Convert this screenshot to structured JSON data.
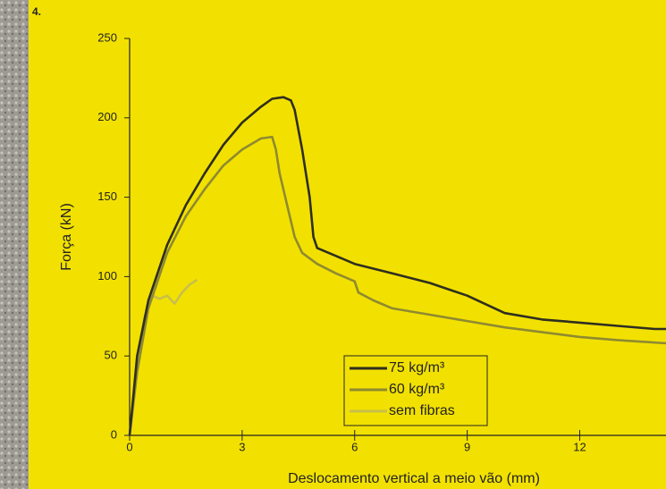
{
  "figure_label": "4.",
  "chart_data": {
    "type": "line",
    "x_label": "Deslocamento vertical a meio vão (mm)",
    "y_label": "Força (kN)",
    "xlim": [
      0,
      14.3
    ],
    "ylim": [
      0,
      250
    ],
    "xticks": [
      0,
      3,
      6,
      9,
      12
    ],
    "yticks": [
      0,
      50,
      100,
      150,
      200,
      250
    ],
    "legend": "bottom-center",
    "series": [
      {
        "name": "75 kg/m³",
        "color": "#2e2e20",
        "x": [
          0,
          0.2,
          0.5,
          1,
          1.5,
          2,
          2.5,
          3,
          3.5,
          3.8,
          4.1,
          4.3,
          4.4,
          4.6,
          4.8,
          4.9,
          5,
          5.5,
          6,
          7,
          8,
          9,
          10,
          11,
          12,
          13,
          14,
          14.3
        ],
        "values": [
          0,
          50,
          85,
          120,
          145,
          165,
          183,
          197,
          207,
          212,
          213,
          211,
          205,
          180,
          150,
          125,
          118,
          113,
          108,
          102,
          96,
          88,
          77,
          73,
          71,
          69,
          67,
          67
        ]
      },
      {
        "name": "60 kg/m³",
        "color": "#8f8a30",
        "x": [
          0,
          0.2,
          0.5,
          1,
          1.5,
          2,
          2.5,
          3,
          3.5,
          3.8,
          3.9,
          4,
          4.2,
          4.4,
          4.6,
          5,
          5.5,
          6,
          6.1,
          6.5,
          7,
          8,
          9,
          10,
          11,
          12,
          13,
          14.3
        ],
        "values": [
          0,
          40,
          80,
          115,
          138,
          155,
          170,
          180,
          187,
          188,
          180,
          165,
          145,
          125,
          115,
          108,
          102,
          97,
          90,
          85,
          80,
          76,
          72,
          68,
          65,
          62,
          60,
          58
        ]
      },
      {
        "name": "sem fibras",
        "color": "#c9bf4a",
        "x": [
          0,
          0.2,
          0.4,
          0.6,
          0.8,
          1,
          1.2,
          1.4,
          1.6,
          1.8
        ],
        "values": [
          0,
          40,
          75,
          88,
          86,
          88,
          83,
          90,
          95,
          98
        ]
      }
    ]
  }
}
